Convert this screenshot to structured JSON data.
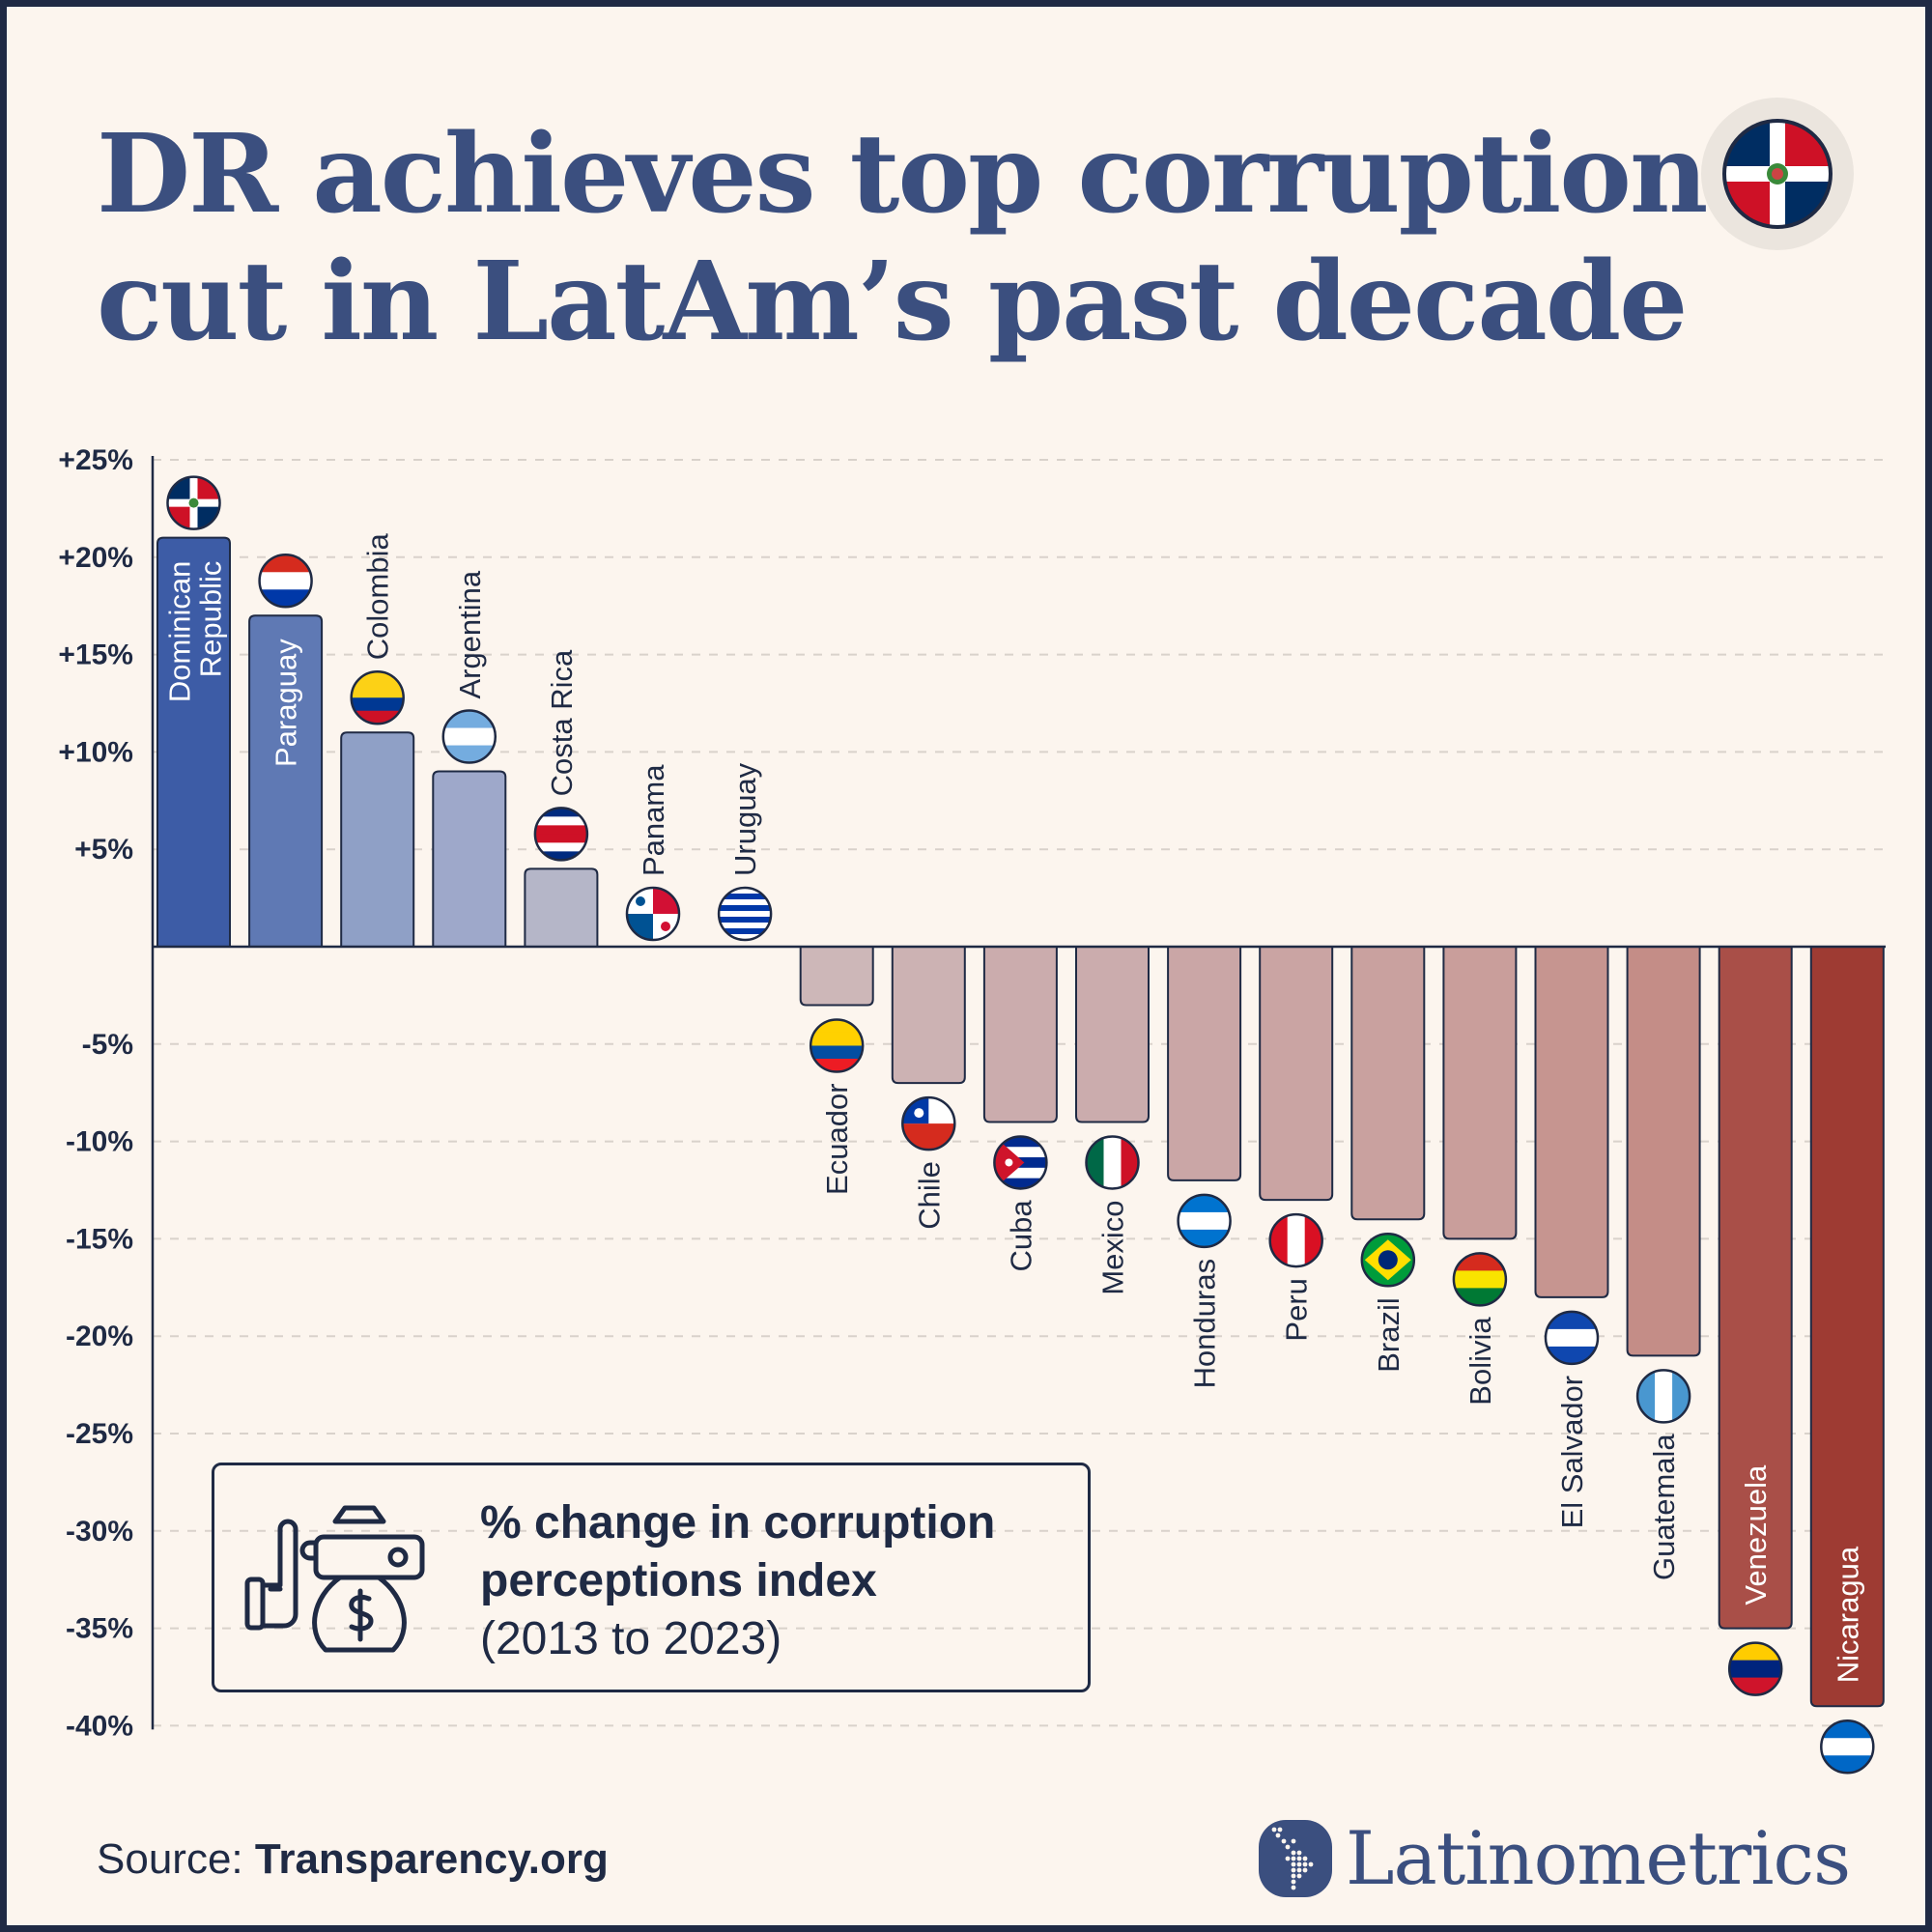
{
  "title": {
    "line1": "DR achieves top corruption",
    "line2": "cut in LatAm’s past decade"
  },
  "header_flag": "Dominican Republic",
  "legend": {
    "line1": "% change in corruption",
    "line2": "perceptions index",
    "line3": "(2013 to 2023)",
    "icon": "hand-refusing-money-bag-icon"
  },
  "source": {
    "label": "Source:",
    "value": "Transparency.org"
  },
  "brand": "Latinometrics",
  "chart_data": {
    "type": "bar",
    "title": "DR achieves top corruption cut in LatAm’s past decade",
    "ylabel": "% change in corruption perceptions index (2013 to 2023)",
    "ylim": [
      -40,
      25
    ],
    "yticks": [
      25,
      20,
      15,
      10,
      5,
      -5,
      -10,
      -15,
      -20,
      -25,
      -30,
      -35,
      -40
    ],
    "ytick_labels": [
      "+25%",
      "+20%",
      "+15%",
      "+10%",
      "+5%",
      "-5%",
      "-10%",
      "-15%",
      "-20%",
      "-25%",
      "-30%",
      "-35%",
      "-40%"
    ],
    "grid": true,
    "categories": [
      "Dominican Republic",
      "Paraguay",
      "Colombia",
      "Argentina",
      "Costa Rica",
      "Panama",
      "Uruguay",
      "Ecuador",
      "Chile",
      "Cuba",
      "Mexico",
      "Honduras",
      "Peru",
      "Brazil",
      "Bolivia",
      "El Salvador",
      "Guatemala",
      "Venezuela",
      "Nicaragua"
    ],
    "values": [
      21,
      17,
      11,
      9,
      4,
      0,
      0,
      -3,
      -7,
      -9,
      -9,
      -12,
      -13,
      -14,
      -15,
      -18,
      -21,
      -35,
      -39
    ],
    "bar_colors": [
      "#3d5ca6",
      "#5f79b4",
      "#8fa0c6",
      "#9ea8ca",
      "#b5b6c8",
      "#c0bcc6",
      "#c0bcc6",
      "#cdb7b8",
      "#ccb2b3",
      "#cbacad",
      "#cbacad",
      "#caa6a6",
      "#caa4a3",
      "#c9a19f",
      "#c99e9b",
      "#c69590",
      "#c48d87",
      "#a94f48",
      "#9e3b33"
    ],
    "labels_inside": [
      true,
      true,
      false,
      false,
      false,
      false,
      false,
      false,
      false,
      false,
      false,
      false,
      false,
      false,
      false,
      false,
      false,
      true,
      true
    ],
    "flags": [
      {
        "type": "dr",
        "colors": [
          "#002d62",
          "#ce1126",
          "#ffffff"
        ]
      },
      {
        "type": "h",
        "colors": [
          "#d52b1e",
          "#ffffff",
          "#0038a8"
        ]
      },
      {
        "type": "h",
        "colors": [
          "#fcd116",
          "#fcd116",
          "#003893",
          "#ce1126"
        ]
      },
      {
        "type": "h",
        "colors": [
          "#74acdf",
          "#ffffff",
          "#74acdf"
        ]
      },
      {
        "type": "h",
        "colors": [
          "#002b7f",
          "#ffffff",
          "#ce1126",
          "#ce1126",
          "#ffffff",
          "#002b7f"
        ]
      },
      {
        "type": "panama",
        "colors": [
          "#ffffff",
          "#d21034",
          "#005293"
        ]
      },
      {
        "type": "h",
        "colors": [
          "#ffffff",
          "#0038a8",
          "#ffffff",
          "#0038a8",
          "#ffffff",
          "#0038a8",
          "#ffffff",
          "#0038a8",
          "#ffffff"
        ]
      },
      {
        "type": "h",
        "colors": [
          "#ffd100",
          "#ffd100",
          "#034ea2",
          "#ed1c24"
        ]
      },
      {
        "type": "chile",
        "colors": [
          "#ffffff",
          "#d52b1e",
          "#0039a6"
        ]
      },
      {
        "type": "cuba",
        "colors": [
          "#002a8f",
          "#ffffff",
          "#cf142b"
        ]
      },
      {
        "type": "v",
        "colors": [
          "#006847",
          "#ffffff",
          "#ce1126"
        ]
      },
      {
        "type": "h",
        "colors": [
          "#0073cf",
          "#ffffff",
          "#0073cf"
        ]
      },
      {
        "type": "v",
        "colors": [
          "#d91023",
          "#ffffff",
          "#d91023"
        ]
      },
      {
        "type": "brazil",
        "colors": [
          "#009c3b",
          "#ffdf00",
          "#002776"
        ]
      },
      {
        "type": "h",
        "colors": [
          "#d52b1e",
          "#f9e300",
          "#007934"
        ]
      },
      {
        "type": "h",
        "colors": [
          "#0f47af",
          "#ffffff",
          "#0f47af"
        ]
      },
      {
        "type": "v",
        "colors": [
          "#4997d0",
          "#ffffff",
          "#4997d0"
        ]
      },
      {
        "type": "h",
        "colors": [
          "#ffcc00",
          "#00247d",
          "#cf142b"
        ]
      },
      {
        "type": "h",
        "colors": [
          "#0067c6",
          "#ffffff",
          "#0067c6"
        ]
      }
    ]
  },
  "colors": {
    "title": "#3b4f7f",
    "ink": "#1f2a44",
    "background": "#fcf5ee",
    "grid": "#d9d2cb"
  }
}
